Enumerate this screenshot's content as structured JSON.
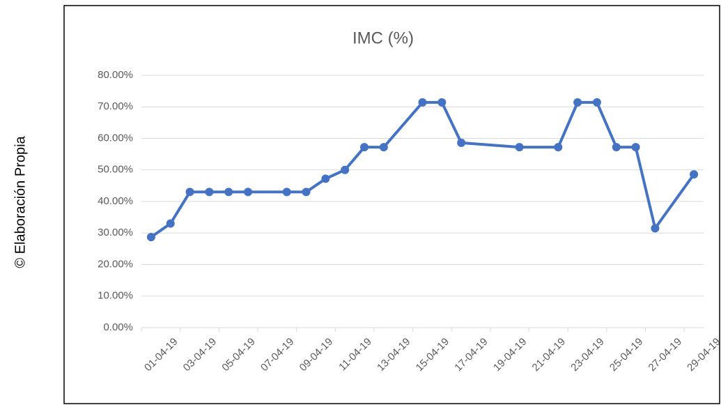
{
  "chart_data": {
    "type": "line",
    "title": "IMC (%)",
    "note": "© Elaboración Propia",
    "x": [
      "01-04-19",
      "02-04-19",
      "03-04-19",
      "04-04-19",
      "05-04-19",
      "06-04-19",
      "08-04-19",
      "09-04-19",
      "10-04-19",
      "11-04-19",
      "12-04-19",
      "13-04-19",
      "15-04-19",
      "16-04-19",
      "17-04-19",
      "20-04-19",
      "22-04-19",
      "23-04-19",
      "24-04-19",
      "25-04-19",
      "26-04-19",
      "27-04-19",
      "29-04-19"
    ],
    "series": [
      {
        "name": "IMC (%)",
        "color": "#4472c4",
        "values": [
          28.7,
          33,
          43,
          43,
          43,
          43,
          43,
          43,
          47.2,
          50,
          57.2,
          57.2,
          71.4,
          71.4,
          58.6,
          57.2,
          57.2,
          71.4,
          71.4,
          57.2,
          57.2,
          31.5,
          48.6
        ]
      }
    ],
    "xlim": [
      "01-04-19",
      "29-04-19"
    ],
    "xticks": [
      "01-04-19",
      "03-04-19",
      "05-04-19",
      "07-04-19",
      "09-04-19",
      "11-04-19",
      "13-04-19",
      "15-04-19",
      "17-04-19",
      "19-04-19",
      "21-04-19",
      "23-04-19",
      "25-04-19",
      "27-04-19",
      "29-04-19"
    ],
    "ylim": [
      0,
      80
    ],
    "yticks": [
      {
        "value": 0,
        "label": "0.00%"
      },
      {
        "value": 10,
        "label": "10.00%"
      },
      {
        "value": 20,
        "label": "20.00%"
      },
      {
        "value": 30,
        "label": "30.00%"
      },
      {
        "value": 40,
        "label": "40.00%"
      },
      {
        "value": 50,
        "label": "50.00%"
      },
      {
        "value": 60,
        "label": "60.00%"
      },
      {
        "value": 70,
        "label": "70.00%"
      },
      {
        "value": 80,
        "label": "80.00%"
      }
    ],
    "grid": true
  }
}
